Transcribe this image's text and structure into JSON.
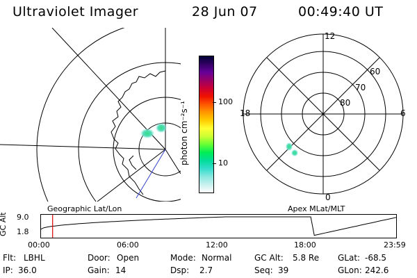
{
  "header": {
    "instrument": "Ultraviolet Imager",
    "date": "28 Jun 07",
    "time": "00:49:40 UT"
  },
  "colorbar": {
    "unit_label": "photon cm⁻²s⁻¹",
    "tick_100": "100",
    "tick_10": "10",
    "colors": [
      "#000033",
      "#330066",
      "#660099",
      "#990066",
      "#cc0033",
      "#ee1100",
      "#ff5500",
      "#ff9900",
      "#ffcc00",
      "#ffff33",
      "#ccff33",
      "#66ff33",
      "#00ee55",
      "#00dd99",
      "#33ddcc",
      "#88e8e0",
      "#c8f0ee",
      "#ffffff"
    ]
  },
  "polar_plot": {
    "label_top": "12",
    "label_left": "18",
    "label_right": "6",
    "label_bottom": "0",
    "ring_60": "60",
    "ring_70": "70",
    "ring_80": "80"
  },
  "map_labels": {
    "geographic": "Geographic Lat/Lon",
    "apex": "Apex MLat/MLT"
  },
  "altitude_strip": {
    "axis_label": "GC Alt",
    "ymax": "9.0",
    "ymin": "1.8",
    "ticks": [
      "00:00",
      "06:00",
      "12:00",
      "18:00",
      "23:59"
    ],
    "marker_time_hours": 0.83
  },
  "info": {
    "filter_label": "Flt:",
    "filter": "LBHL",
    "door_label": "Door:",
    "door": "Open",
    "mode_label": "Mode:",
    "mode": "Normal",
    "gcalt_label": "GC Alt:",
    "gcalt": "5.8 Re",
    "glat_label": "GLat:",
    "glat": "-68.5",
    "ip_label": "IP:",
    "ip": "36.0",
    "gain_label": "Gain:",
    "gain": "14",
    "dsp_label": "Dsp:",
    "dsp": "2.7",
    "seq_label": "Seq:",
    "seq": "39",
    "glon_label": "GLon:",
    "glon": "242.6"
  }
}
